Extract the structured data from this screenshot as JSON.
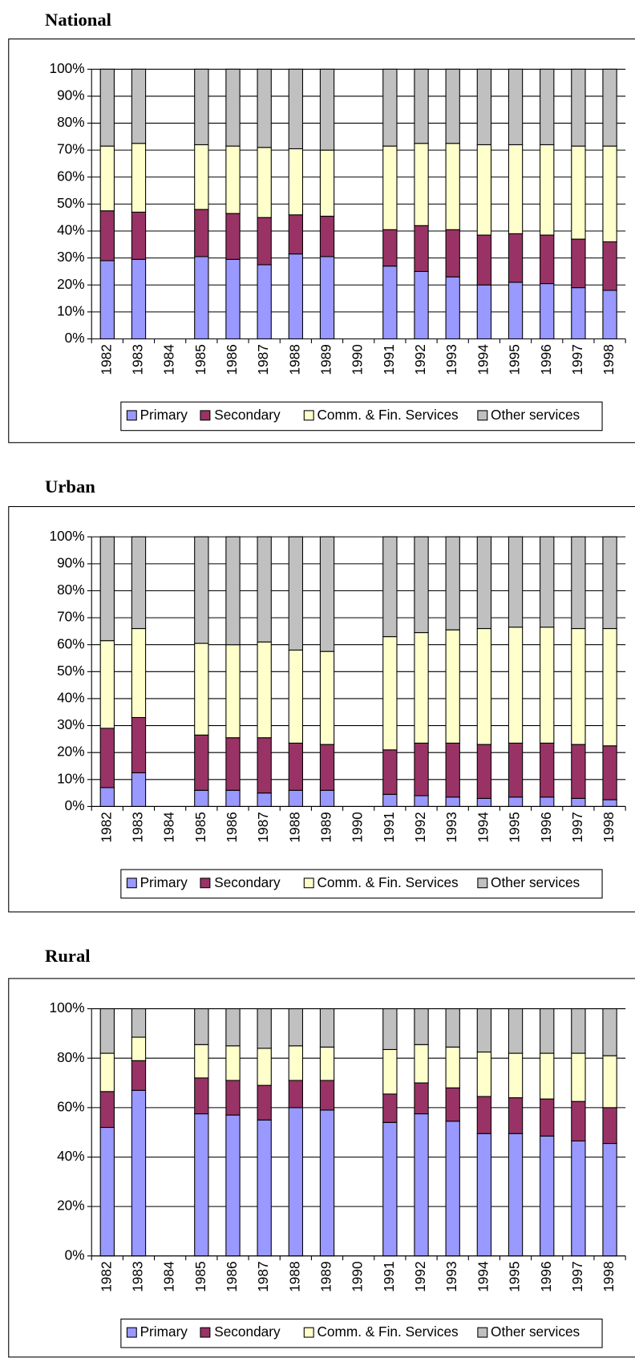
{
  "chart_data": [
    {
      "type": "bar",
      "stacked": true,
      "title": "National",
      "categories": [
        "1982",
        "1983",
        "1984",
        "1985",
        "1986",
        "1987",
        "1988",
        "1989",
        "1990",
        "1991",
        "1992",
        "1993",
        "1994",
        "1995",
        "1996",
        "1997",
        "1998"
      ],
      "series": [
        {
          "name": "Primary",
          "color": "#9999ff",
          "values": [
            29,
            29.5,
            null,
            30.5,
            29.5,
            27.5,
            31.5,
            30.5,
            null,
            27,
            25,
            23,
            20,
            21,
            20.5,
            19,
            18
          ]
        },
        {
          "name": "Secondary",
          "color": "#993366",
          "values": [
            18.5,
            17.5,
            null,
            17.5,
            17,
            17.5,
            14.5,
            15,
            null,
            13.5,
            17,
            17.5,
            18.5,
            18,
            18,
            18,
            18
          ]
        },
        {
          "name": "Comm. & Fin. Services",
          "color": "#ffffcc",
          "values": [
            24,
            25.5,
            null,
            24,
            25,
            26,
            24.5,
            24.5,
            null,
            31,
            30.5,
            32,
            33.5,
            33,
            33.5,
            34.5,
            35.5
          ]
        },
        {
          "name": "Other services",
          "color": "#c0c0c0",
          "values": [
            28.5,
            27.5,
            null,
            28,
            28.5,
            29,
            29.5,
            30,
            null,
            28.5,
            27.5,
            27.5,
            28,
            28,
            28,
            28.5,
            28.5
          ]
        }
      ],
      "ylim": [
        0,
        100
      ],
      "yticks": [
        {
          "value": 0,
          "label": "0%"
        },
        {
          "value": 10,
          "label": "10%"
        },
        {
          "value": 20,
          "label": "20%"
        },
        {
          "value": 30,
          "label": "30%"
        },
        {
          "value": 40,
          "label": "40%"
        },
        {
          "value": 50,
          "label": "50%"
        },
        {
          "value": 60,
          "label": "60%"
        },
        {
          "value": 70,
          "label": "70%"
        },
        {
          "value": 80,
          "label": "80%"
        },
        {
          "value": 90,
          "label": "90%"
        },
        {
          "value": 100,
          "label": "100%"
        }
      ],
      "grid": true,
      "legend": "bottom"
    },
    {
      "type": "bar",
      "stacked": true,
      "title": "Urban",
      "categories": [
        "1982",
        "1983",
        "1984",
        "1985",
        "1986",
        "1987",
        "1988",
        "1989",
        "1990",
        "1991",
        "1992",
        "1993",
        "1994",
        "1995",
        "1996",
        "1997",
        "1998"
      ],
      "series": [
        {
          "name": "Primary",
          "color": "#9999ff",
          "values": [
            7,
            12.5,
            null,
            6,
            6,
            5,
            6,
            6,
            null,
            4.5,
            4,
            3.5,
            3,
            3.5,
            3.5,
            3,
            2.5
          ]
        },
        {
          "name": "Secondary",
          "color": "#993366",
          "values": [
            22,
            20.5,
            null,
            20.5,
            19.5,
            20.5,
            17.5,
            17,
            null,
            16.5,
            19.5,
            20,
            20,
            20,
            20,
            20,
            20
          ]
        },
        {
          "name": "Comm. & Fin. Services",
          "color": "#ffffcc",
          "values": [
            32.5,
            33,
            null,
            34,
            34.5,
            35.5,
            34.5,
            34.5,
            null,
            42,
            41,
            42,
            43,
            43,
            43,
            43,
            43.5
          ]
        },
        {
          "name": "Other services",
          "color": "#c0c0c0",
          "values": [
            38.5,
            34,
            null,
            39.5,
            40,
            39,
            42,
            42.5,
            null,
            37,
            35.5,
            34.5,
            34,
            33.5,
            33.5,
            34,
            34
          ]
        }
      ],
      "ylim": [
        0,
        100
      ],
      "yticks": [
        {
          "value": 0,
          "label": "0%"
        },
        {
          "value": 10,
          "label": "10%"
        },
        {
          "value": 20,
          "label": "20%"
        },
        {
          "value": 30,
          "label": "30%"
        },
        {
          "value": 40,
          "label": "40%"
        },
        {
          "value": 50,
          "label": "50%"
        },
        {
          "value": 60,
          "label": "60%"
        },
        {
          "value": 70,
          "label": "70%"
        },
        {
          "value": 80,
          "label": "80%"
        },
        {
          "value": 90,
          "label": "90%"
        },
        {
          "value": 100,
          "label": "100%"
        }
      ],
      "grid": true,
      "legend": "bottom"
    },
    {
      "type": "bar",
      "stacked": true,
      "title": "Rural",
      "categories": [
        "1982",
        "1983",
        "1984",
        "1985",
        "1986",
        "1987",
        "1988",
        "1989",
        "1990",
        "1991",
        "1992",
        "1993",
        "1994",
        "1995",
        "1996",
        "1997",
        "1998"
      ],
      "series": [
        {
          "name": "Primary",
          "color": "#9999ff",
          "values": [
            52,
            67,
            null,
            57.5,
            57,
            55,
            60,
            59,
            null,
            54,
            57.5,
            54.5,
            49.5,
            49.5,
            48.5,
            46.5,
            45.5
          ]
        },
        {
          "name": "Secondary",
          "color": "#993366",
          "values": [
            14.5,
            12,
            null,
            14.5,
            14,
            14,
            11,
            12,
            null,
            11.5,
            12.5,
            13.5,
            15,
            14.5,
            15,
            16,
            14.5
          ]
        },
        {
          "name": "Comm. & Fin. Services",
          "color": "#ffffcc",
          "values": [
            15.5,
            9.5,
            null,
            13.5,
            14,
            15,
            14,
            13.5,
            null,
            18,
            15.5,
            16.5,
            18,
            18,
            18.5,
            19.5,
            21
          ]
        },
        {
          "name": "Other services",
          "color": "#c0c0c0",
          "values": [
            18,
            11.5,
            null,
            14.5,
            15,
            16,
            15,
            15.5,
            null,
            16.5,
            14.5,
            15.5,
            17.5,
            18,
            18,
            18,
            19
          ]
        }
      ],
      "ylim": [
        0,
        100
      ],
      "yticks": [
        {
          "value": 0,
          "label": "0%"
        },
        {
          "value": 20,
          "label": "20%"
        },
        {
          "value": 40,
          "label": "40%"
        },
        {
          "value": 60,
          "label": "60%"
        },
        {
          "value": 80,
          "label": "80%"
        },
        {
          "value": 100,
          "label": "100%"
        }
      ],
      "grid": true,
      "legend": "bottom"
    }
  ]
}
